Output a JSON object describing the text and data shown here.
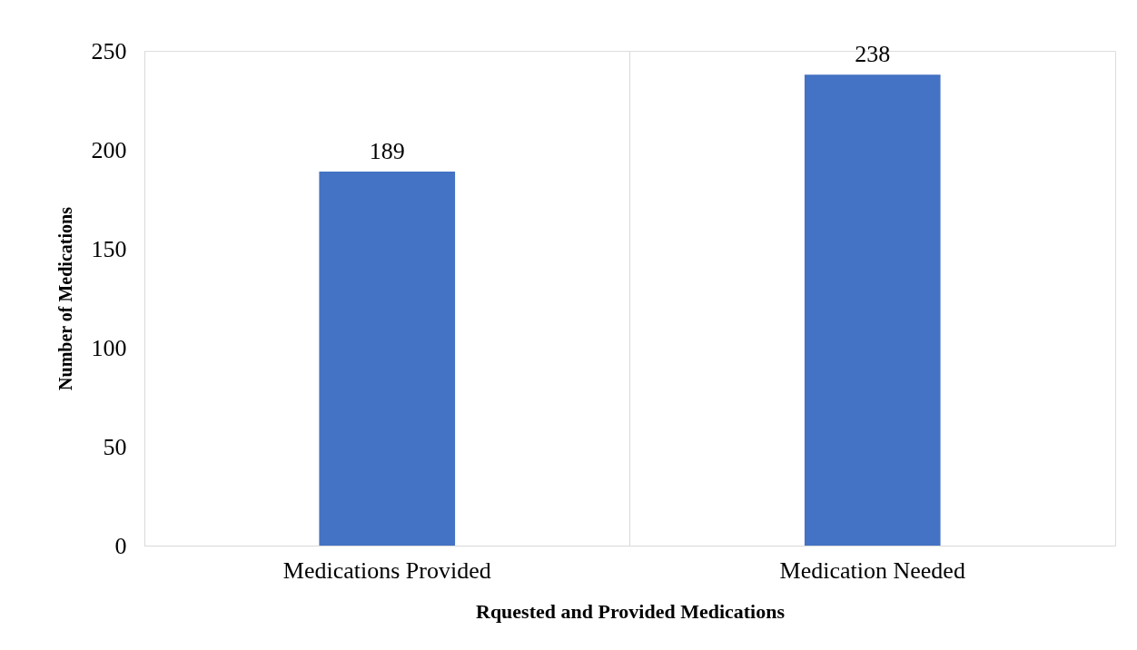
{
  "chart_data": {
    "type": "bar",
    "xlabel": "Rquested and Provided Medications",
    "ylabel": "Number of Medications",
    "categories": [
      "Medications Provided",
      "Medication Needed"
    ],
    "values": [
      189,
      238
    ],
    "color": "#4472c4",
    "ylim": [
      0,
      250
    ],
    "yticks": [
      0,
      50,
      100,
      150,
      200,
      250
    ],
    "grid": "x",
    "data_labels": true
  }
}
